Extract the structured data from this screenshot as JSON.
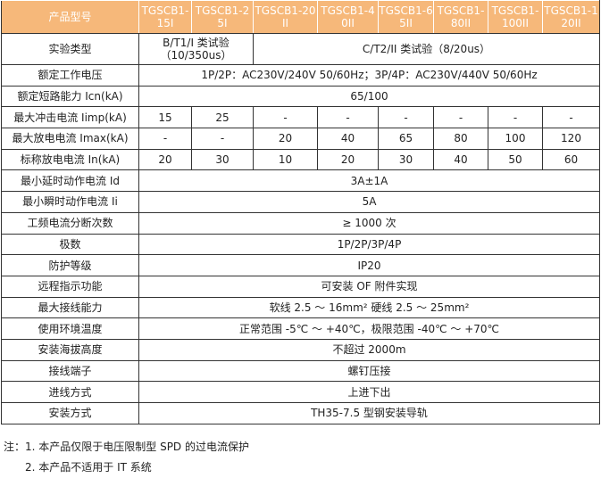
{
  "header": {
    "label": "产品型号",
    "models": [
      "TGSCB1-15I",
      "TGSCB1-25I",
      "TGSCB1-20II",
      "TGSCB1-40II",
      "TGSCB1-65II",
      "TGSCB1-80II",
      "TGSCB1-100II",
      "TGSCB1-120II"
    ]
  },
  "test_type": {
    "label": "实验类型",
    "class1": "B/T1/I 类试验（10/350us）",
    "class2": "C/T2/II 类试验（8/20us）"
  },
  "per_model_rows": [
    {
      "label": "最大冲击电流 Iimp(kA)",
      "values": [
        "15",
        "25",
        "-",
        "-",
        "-",
        "-",
        "-",
        "-"
      ]
    },
    {
      "label": "最大放电电流 Imax(kA)",
      "values": [
        "-",
        "-",
        "20",
        "40",
        "65",
        "80",
        "100",
        "120"
      ]
    },
    {
      "label": "标称放电电流 In(kA)",
      "values": [
        "20",
        "30",
        "10",
        "20",
        "30",
        "40",
        "50",
        "60"
      ]
    }
  ],
  "rows_before": [
    {
      "label": "额定工作电压",
      "value": "1P/2P：AC230V/240V 50/60Hz；3P/4P：AC230V/440V 50/60Hz"
    },
    {
      "label": "额定短路能力 Icn(kA)",
      "value": "65/100"
    }
  ],
  "rows_after": [
    {
      "label": "最小延时动作电流 Id",
      "value": "3A±1A"
    },
    {
      "label": "最小瞬时动作电流 Ii",
      "value": "5A"
    },
    {
      "label": "工频电流分断次数",
      "value": "≥ 1000 次"
    },
    {
      "label": "极数",
      "value": "1P/2P/3P/4P"
    },
    {
      "label": "防护等级",
      "value": "IP20"
    },
    {
      "label": "远程指示功能",
      "value": "可安装 OF 附件实现"
    },
    {
      "label": "最大接线能力",
      "value": "软线 2.5 ～ 16mm² 硬线 2.5 ～ 25mm²"
    },
    {
      "label": "使用环境温度",
      "value": "正常范围 -5℃ ～ +40℃，极限范围 -40℃ ～ +70℃"
    },
    {
      "label": "安装海拔高度",
      "value": "不超过 2000m"
    },
    {
      "label": "接线端子",
      "value": "螺钉压接"
    },
    {
      "label": "进线方式",
      "value": "上进下出"
    },
    {
      "label": "安装方式",
      "value": "TH35-7.5 型钢安装导轨"
    }
  ],
  "notes": [
    "注：1. 本产品仅限于电压限制型 SPD 的过电流保护",
    "2. 本产品不适用于 IT 系统"
  ]
}
